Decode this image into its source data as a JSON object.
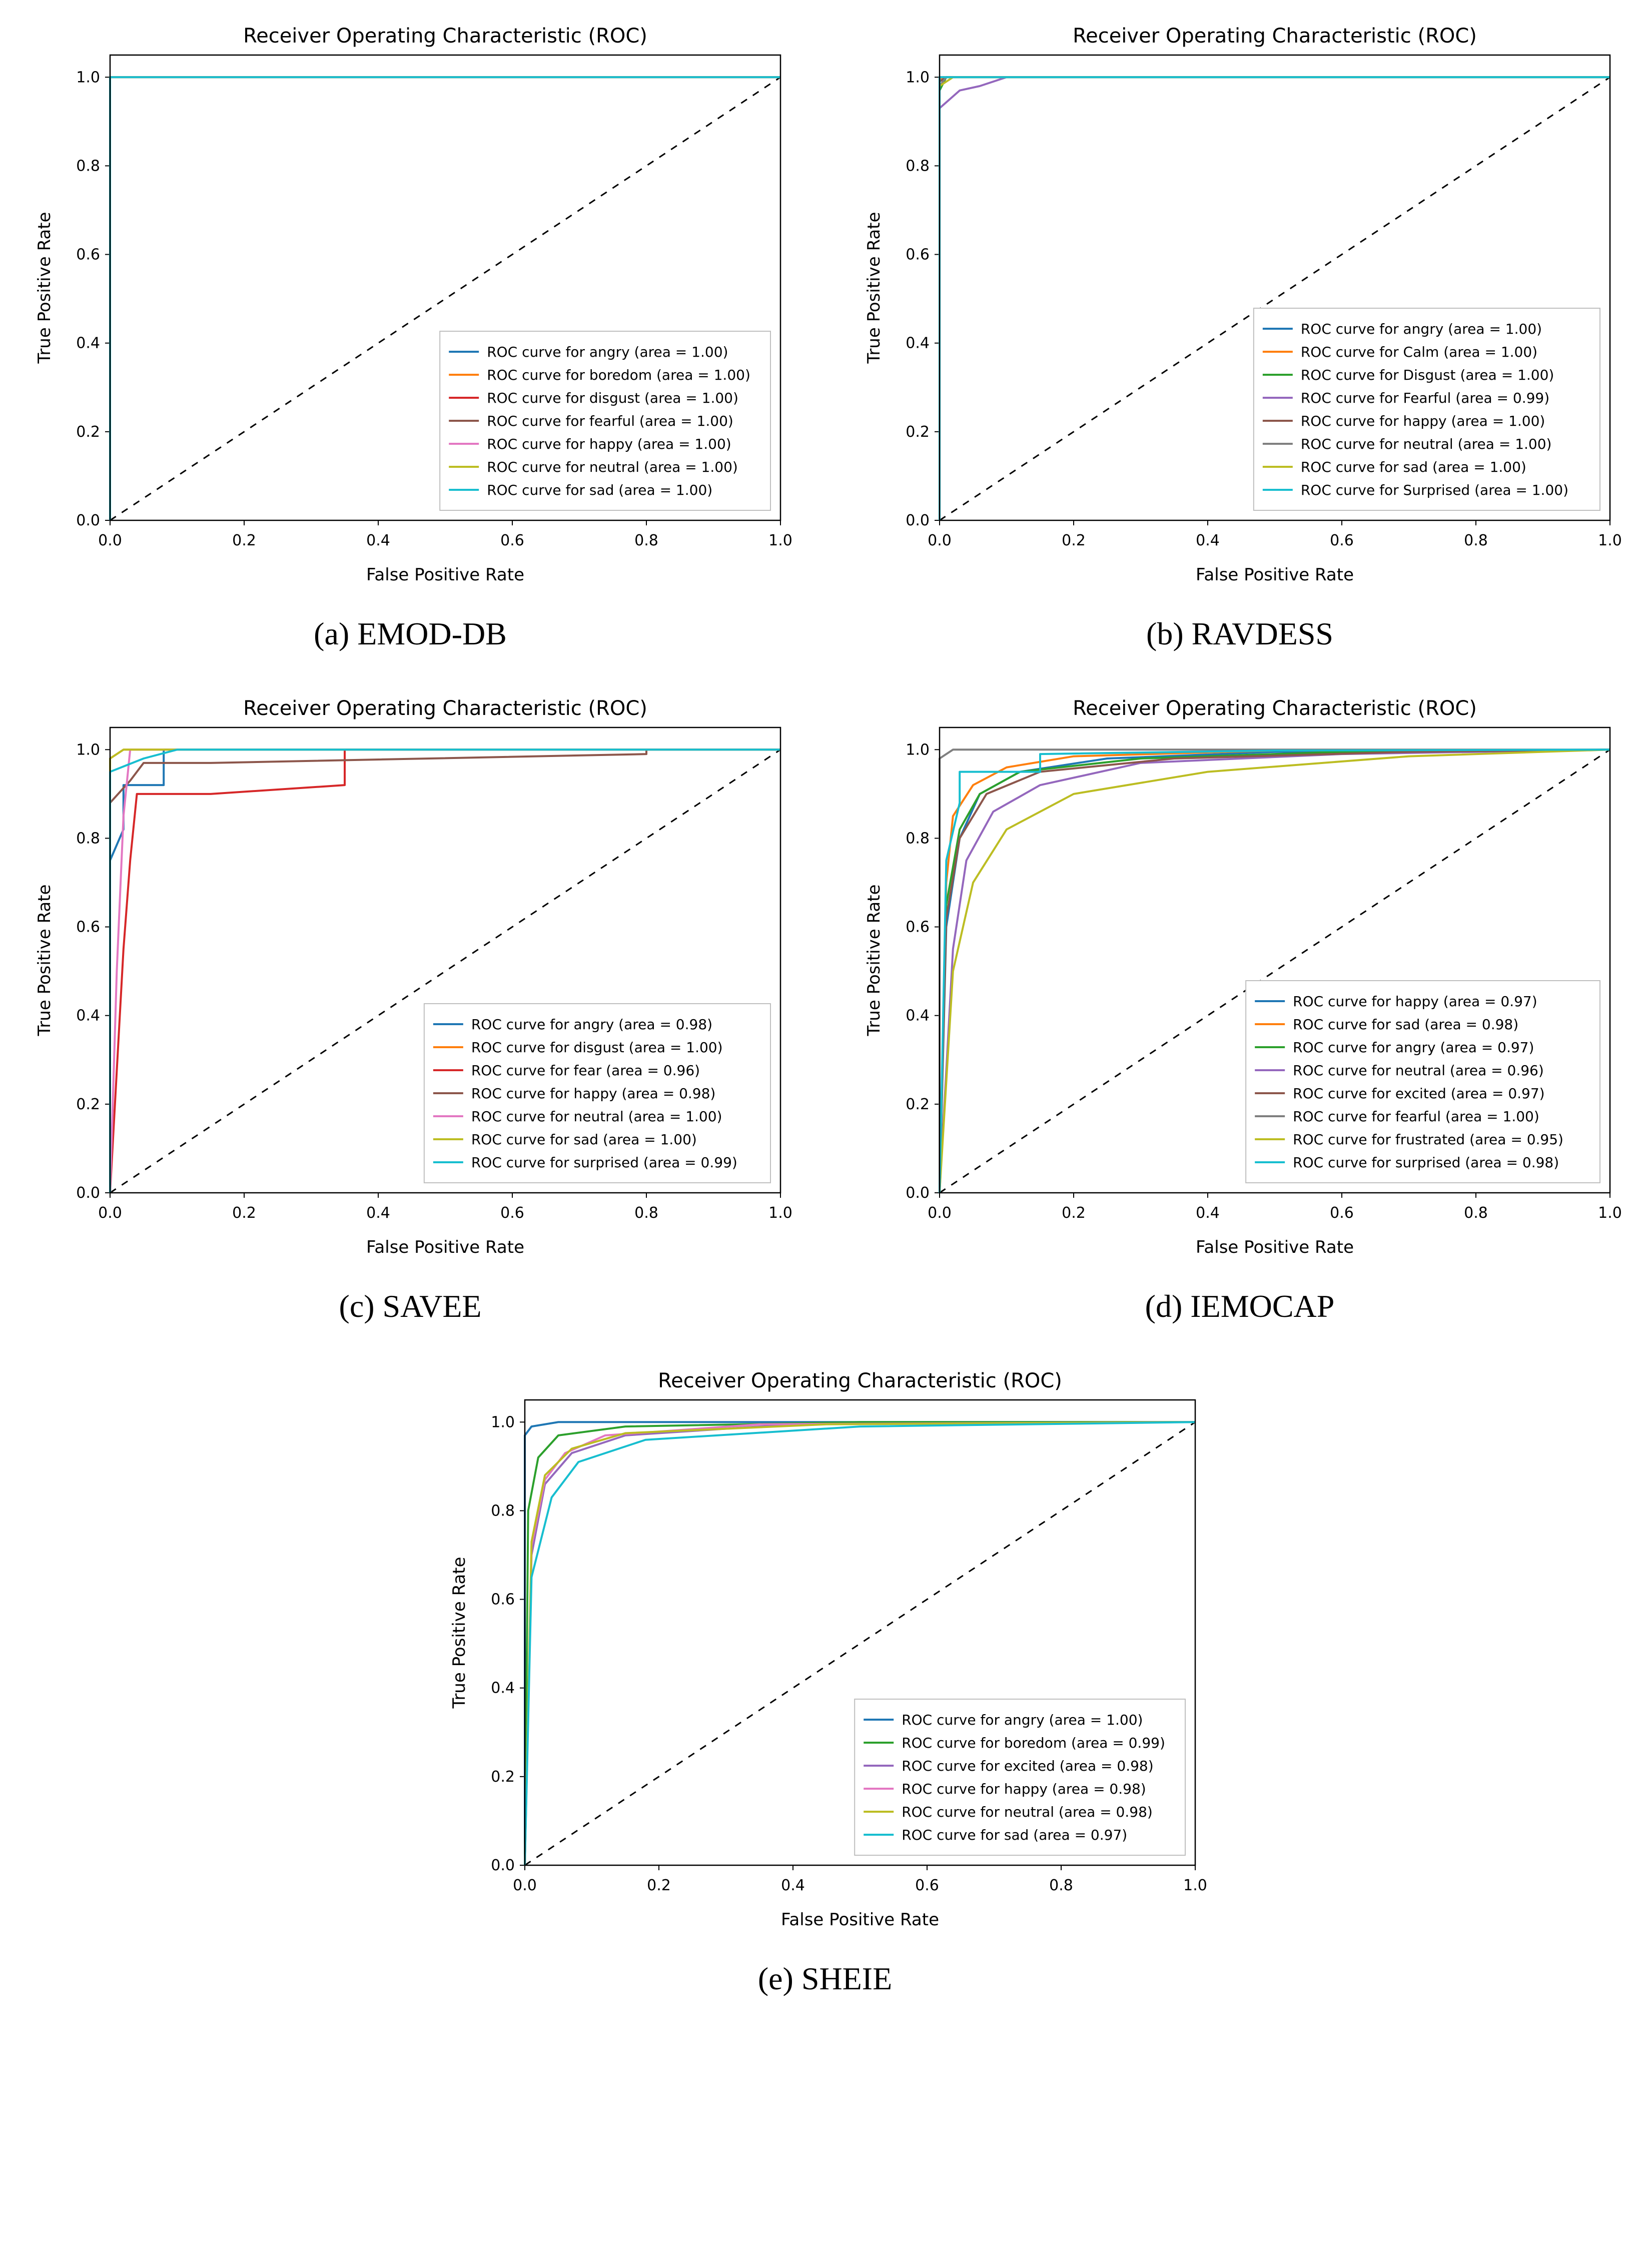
{
  "global": {
    "title": "Receiver Operating Characteristic (ROC)",
    "xlabel": "False Positive Rate",
    "ylabel": "True Positive Rate",
    "xlim": [
      0.0,
      1.0
    ],
    "ylim": [
      0.0,
      1.05
    ],
    "xticks": [
      0.0,
      0.2,
      0.4,
      0.6,
      0.8,
      1.0
    ],
    "yticks": [
      0.0,
      0.2,
      0.4,
      0.6,
      0.8,
      1.0
    ],
    "tick_fontsize": 30,
    "label_fontsize": 34,
    "title_fontsize": 40,
    "legend_fontsize": 28,
    "axis_color": "#000000",
    "bg_color": "#ffffff",
    "spine_width": 2.5,
    "diag_color": "#000000",
    "diag_dash": "14 14",
    "line_width": 4,
    "palette": {
      "c0": "#1f77b4",
      "c1": "#ff7f0e",
      "c2": "#2ca02c",
      "c3": "#d62728",
      "c4": "#9467bd",
      "c5": "#8c564b",
      "c6": "#e377c2",
      "c7": "#7f7f7f",
      "c8": "#bcbd22",
      "c9": "#17becf"
    }
  },
  "panels": [
    {
      "id": "a",
      "caption": "(a) EMOD-DB",
      "series": [
        {
          "label": "ROC curve for angry (area = 1.00)",
          "color": "#1f77b4",
          "points": [
            [
              0,
              0
            ],
            [
              0,
              1
            ],
            [
              1,
              1
            ]
          ]
        },
        {
          "label": "ROC curve for boredom (area = 1.00)",
          "color": "#ff7f0e",
          "points": [
            [
              0,
              0
            ],
            [
              0,
              1
            ],
            [
              1,
              1
            ]
          ]
        },
        {
          "label": "ROC curve for disgust (area = 1.00)",
          "color": "#d62728",
          "points": [
            [
              0,
              0
            ],
            [
              0,
              1
            ],
            [
              1,
              1
            ]
          ]
        },
        {
          "label": "ROC curve for fearful (area = 1.00)",
          "color": "#8c564b",
          "points": [
            [
              0,
              0
            ],
            [
              0,
              1
            ],
            [
              1,
              1
            ]
          ]
        },
        {
          "label": "ROC curve for happy (area = 1.00)",
          "color": "#e377c2",
          "points": [
            [
              0,
              0
            ],
            [
              0,
              1
            ],
            [
              1,
              1
            ]
          ]
        },
        {
          "label": "ROC curve for neutral (area = 1.00)",
          "color": "#bcbd22",
          "points": [
            [
              0,
              0
            ],
            [
              0,
              1
            ],
            [
              1,
              1
            ]
          ]
        },
        {
          "label": "ROC curve for sad (area = 1.00)",
          "color": "#17becf",
          "points": [
            [
              0,
              0
            ],
            [
              0,
              1
            ],
            [
              1,
              1
            ]
          ]
        }
      ]
    },
    {
      "id": "b",
      "caption": "(b) RAVDESS",
      "series": [
        {
          "label": "ROC curve for angry (area = 1.00)",
          "color": "#1f77b4",
          "points": [
            [
              0,
              0
            ],
            [
              0,
              1
            ],
            [
              1,
              1
            ]
          ]
        },
        {
          "label": "ROC curve for Calm (area = 1.00)",
          "color": "#ff7f0e",
          "points": [
            [
              0,
              0
            ],
            [
              0,
              0.99
            ],
            [
              0.005,
              1
            ],
            [
              1,
              1
            ]
          ]
        },
        {
          "label": "ROC curve for Disgust (area = 1.00)",
          "color": "#2ca02c",
          "points": [
            [
              0,
              0
            ],
            [
              0,
              0.97
            ],
            [
              0.01,
              1
            ],
            [
              1,
              1
            ]
          ]
        },
        {
          "label": "ROC curve for Fearful (area = 0.99)",
          "color": "#9467bd",
          "points": [
            [
              0,
              0
            ],
            [
              0,
              0.93
            ],
            [
              0.03,
              0.97
            ],
            [
              0.06,
              0.98
            ],
            [
              0.1,
              1
            ],
            [
              1,
              1
            ]
          ]
        },
        {
          "label": "ROC curve for happy (area = 1.00)",
          "color": "#8c564b",
          "points": [
            [
              0,
              0
            ],
            [
              0,
              0.99
            ],
            [
              0.01,
              1
            ],
            [
              1,
              1
            ]
          ]
        },
        {
          "label": "ROC curve for neutral (area = 1.00)",
          "color": "#7f7f7f",
          "points": [
            [
              0,
              0
            ],
            [
              0,
              0.98
            ],
            [
              0.01,
              1
            ],
            [
              1,
              1
            ]
          ]
        },
        {
          "label": "ROC curve for sad (area = 1.00)",
          "color": "#bcbd22",
          "points": [
            [
              0,
              0
            ],
            [
              0,
              0.98
            ],
            [
              0.02,
              1
            ],
            [
              1,
              1
            ]
          ]
        },
        {
          "label": "ROC curve for Surprised (area = 1.00)",
          "color": "#17becf",
          "points": [
            [
              0,
              0
            ],
            [
              0,
              1
            ],
            [
              1,
              1
            ]
          ]
        }
      ]
    },
    {
      "id": "c",
      "caption": "(c) SAVEE",
      "series": [
        {
          "label": "ROC curve for angry (area = 0.98)",
          "color": "#1f77b4",
          "points": [
            [
              0,
              0
            ],
            [
              0,
              0.75
            ],
            [
              0.02,
              0.82
            ],
            [
              0.02,
              0.92
            ],
            [
              0.08,
              0.92
            ],
            [
              0.08,
              1
            ],
            [
              1,
              1
            ]
          ]
        },
        {
          "label": "ROC curve for disgust (area = 1.00)",
          "color": "#ff7f0e",
          "points": [
            [
              0,
              0
            ],
            [
              0,
              0.98
            ],
            [
              0.02,
              1
            ],
            [
              1,
              1
            ]
          ]
        },
        {
          "label": "ROC curve for fear (area = 0.96)",
          "color": "#d62728",
          "points": [
            [
              0,
              0
            ],
            [
              0.02,
              0.55
            ],
            [
              0.03,
              0.75
            ],
            [
              0.04,
              0.9
            ],
            [
              0.15,
              0.9
            ],
            [
              0.35,
              0.92
            ],
            [
              0.35,
              1
            ],
            [
              1,
              1
            ]
          ]
        },
        {
          "label": "ROC curve for happy (area = 0.98)",
          "color": "#8c564b",
          "points": [
            [
              0,
              0
            ],
            [
              0,
              0.88
            ],
            [
              0.03,
              0.93
            ],
            [
              0.05,
              0.97
            ],
            [
              0.15,
              0.97
            ],
            [
              0.8,
              0.99
            ],
            [
              0.8,
              1
            ],
            [
              1,
              1
            ]
          ]
        },
        {
          "label": "ROC curve for neutral (area = 1.00)",
          "color": "#e377c2",
          "points": [
            [
              0,
              0
            ],
            [
              0.01,
              0.5
            ],
            [
              0.02,
              0.85
            ],
            [
              0.03,
              1
            ],
            [
              1,
              1
            ]
          ]
        },
        {
          "label": "ROC curve for sad (area = 1.00)",
          "color": "#bcbd22",
          "points": [
            [
              0,
              0
            ],
            [
              0,
              0.98
            ],
            [
              0.02,
              1
            ],
            [
              1,
              1
            ]
          ]
        },
        {
          "label": "ROC curve for surprised (area = 0.99)",
          "color": "#17becf",
          "points": [
            [
              0,
              0
            ],
            [
              0,
              0.95
            ],
            [
              0.05,
              0.98
            ],
            [
              0.1,
              1
            ],
            [
              1,
              1
            ]
          ]
        }
      ]
    },
    {
      "id": "d",
      "caption": "(d) IEMOCAP",
      "series": [
        {
          "label": "ROC curve for happy (area = 0.97)",
          "color": "#1f77b4",
          "points": [
            [
              0,
              0
            ],
            [
              0.01,
              0.6
            ],
            [
              0.03,
              0.8
            ],
            [
              0.06,
              0.9
            ],
            [
              0.12,
              0.95
            ],
            [
              0.25,
              0.98
            ],
            [
              0.5,
              0.995
            ],
            [
              1,
              1
            ]
          ]
        },
        {
          "label": "ROC curve for sad (area = 0.98)",
          "color": "#ff7f0e",
          "points": [
            [
              0,
              0
            ],
            [
              0.01,
              0.7
            ],
            [
              0.02,
              0.85
            ],
            [
              0.05,
              0.92
            ],
            [
              0.1,
              0.96
            ],
            [
              0.2,
              0.985
            ],
            [
              0.5,
              0.998
            ],
            [
              1,
              1
            ]
          ]
        },
        {
          "label": "ROC curve for angry (area = 0.97)",
          "color": "#2ca02c",
          "points": [
            [
              0,
              0
            ],
            [
              0.01,
              0.65
            ],
            [
              0.03,
              0.82
            ],
            [
              0.06,
              0.9
            ],
            [
              0.12,
              0.95
            ],
            [
              0.3,
              0.98
            ],
            [
              0.6,
              0.995
            ],
            [
              1,
              1
            ]
          ]
        },
        {
          "label": "ROC curve for neutral (area = 0.96)",
          "color": "#9467bd",
          "points": [
            [
              0,
              0
            ],
            [
              0.02,
              0.55
            ],
            [
              0.04,
              0.75
            ],
            [
              0.08,
              0.86
            ],
            [
              0.15,
              0.92
            ],
            [
              0.3,
              0.97
            ],
            [
              0.6,
              0.99
            ],
            [
              1,
              1
            ]
          ]
        },
        {
          "label": "ROC curve for excited (area = 0.97)",
          "color": "#8c564b",
          "points": [
            [
              0,
              0
            ],
            [
              0.01,
              0.62
            ],
            [
              0.03,
              0.8
            ],
            [
              0.07,
              0.9
            ],
            [
              0.15,
              0.95
            ],
            [
              0.35,
              0.98
            ],
            [
              0.7,
              0.995
            ],
            [
              1,
              1
            ]
          ]
        },
        {
          "label": "ROC curve for fearful (area = 1.00)",
          "color": "#7f7f7f",
          "points": [
            [
              0,
              0
            ],
            [
              0,
              0.98
            ],
            [
              0.02,
              1
            ],
            [
              1,
              1
            ]
          ]
        },
        {
          "label": "ROC curve for frustrated (area = 0.95)",
          "color": "#bcbd22",
          "points": [
            [
              0,
              0
            ],
            [
              0.02,
              0.5
            ],
            [
              0.05,
              0.7
            ],
            [
              0.1,
              0.82
            ],
            [
              0.2,
              0.9
            ],
            [
              0.4,
              0.95
            ],
            [
              0.7,
              0.985
            ],
            [
              1,
              1
            ]
          ]
        },
        {
          "label": "ROC curve for surprised (area = 0.98)",
          "color": "#17becf",
          "points": [
            [
              0,
              0
            ],
            [
              0.01,
              0.75
            ],
            [
              0.03,
              0.88
            ],
            [
              0.03,
              0.95
            ],
            [
              0.15,
              0.95
            ],
            [
              0.15,
              0.99
            ],
            [
              0.5,
              0.998
            ],
            [
              1,
              1
            ]
          ]
        }
      ]
    },
    {
      "id": "e",
      "caption": "(e) SHEIE",
      "series": [
        {
          "label": "ROC curve for angry (area = 1.00)",
          "color": "#1f77b4",
          "points": [
            [
              0,
              0
            ],
            [
              0,
              0.97
            ],
            [
              0.01,
              0.99
            ],
            [
              0.05,
              1
            ],
            [
              1,
              1
            ]
          ]
        },
        {
          "label": "ROC curve for boredom (area = 0.99)",
          "color": "#2ca02c",
          "points": [
            [
              0,
              0
            ],
            [
              0.005,
              0.8
            ],
            [
              0.02,
              0.92
            ],
            [
              0.05,
              0.97
            ],
            [
              0.15,
              0.99
            ],
            [
              0.5,
              1
            ],
            [
              1,
              1
            ]
          ]
        },
        {
          "label": "ROC curve for excited (area = 0.98)",
          "color": "#9467bd",
          "points": [
            [
              0,
              0
            ],
            [
              0.01,
              0.7
            ],
            [
              0.03,
              0.86
            ],
            [
              0.07,
              0.93
            ],
            [
              0.15,
              0.97
            ],
            [
              0.4,
              0.995
            ],
            [
              1,
              1
            ]
          ]
        },
        {
          "label": "ROC curve for happy (area = 0.98)",
          "color": "#e377c2",
          "points": [
            [
              0,
              0
            ],
            [
              0.01,
              0.72
            ],
            [
              0.03,
              0.87
            ],
            [
              0.06,
              0.93
            ],
            [
              0.12,
              0.97
            ],
            [
              0.35,
              0.995
            ],
            [
              1,
              1
            ]
          ]
        },
        {
          "label": "ROC curve for neutral (area = 0.98)",
          "color": "#bcbd22",
          "points": [
            [
              0,
              0
            ],
            [
              0.01,
              0.73
            ],
            [
              0.03,
              0.88
            ],
            [
              0.07,
              0.94
            ],
            [
              0.15,
              0.975
            ],
            [
              0.45,
              0.995
            ],
            [
              1,
              1
            ]
          ]
        },
        {
          "label": "ROC curve for sad (area = 0.97)",
          "color": "#17becf",
          "points": [
            [
              0,
              0
            ],
            [
              0.01,
              0.65
            ],
            [
              0.04,
              0.83
            ],
            [
              0.08,
              0.91
            ],
            [
              0.18,
              0.96
            ],
            [
              0.5,
              0.99
            ],
            [
              1,
              1
            ]
          ]
        }
      ]
    }
  ]
}
